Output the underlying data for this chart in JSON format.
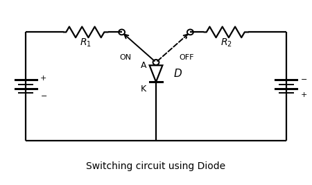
{
  "title": "Switching circuit using Diode",
  "title_fontsize": 10,
  "bg_color": "#ffffff",
  "line_color": "#000000",
  "R1_label": "$R_1$",
  "R2_label": "$R_2$",
  "D_label": "D",
  "A_label": "A",
  "K_label": "K",
  "ON_label": "ON",
  "OFF_label": "OFF",
  "canvas_xlim": [
    0,
    9
  ],
  "canvas_ylim": [
    0,
    6
  ]
}
